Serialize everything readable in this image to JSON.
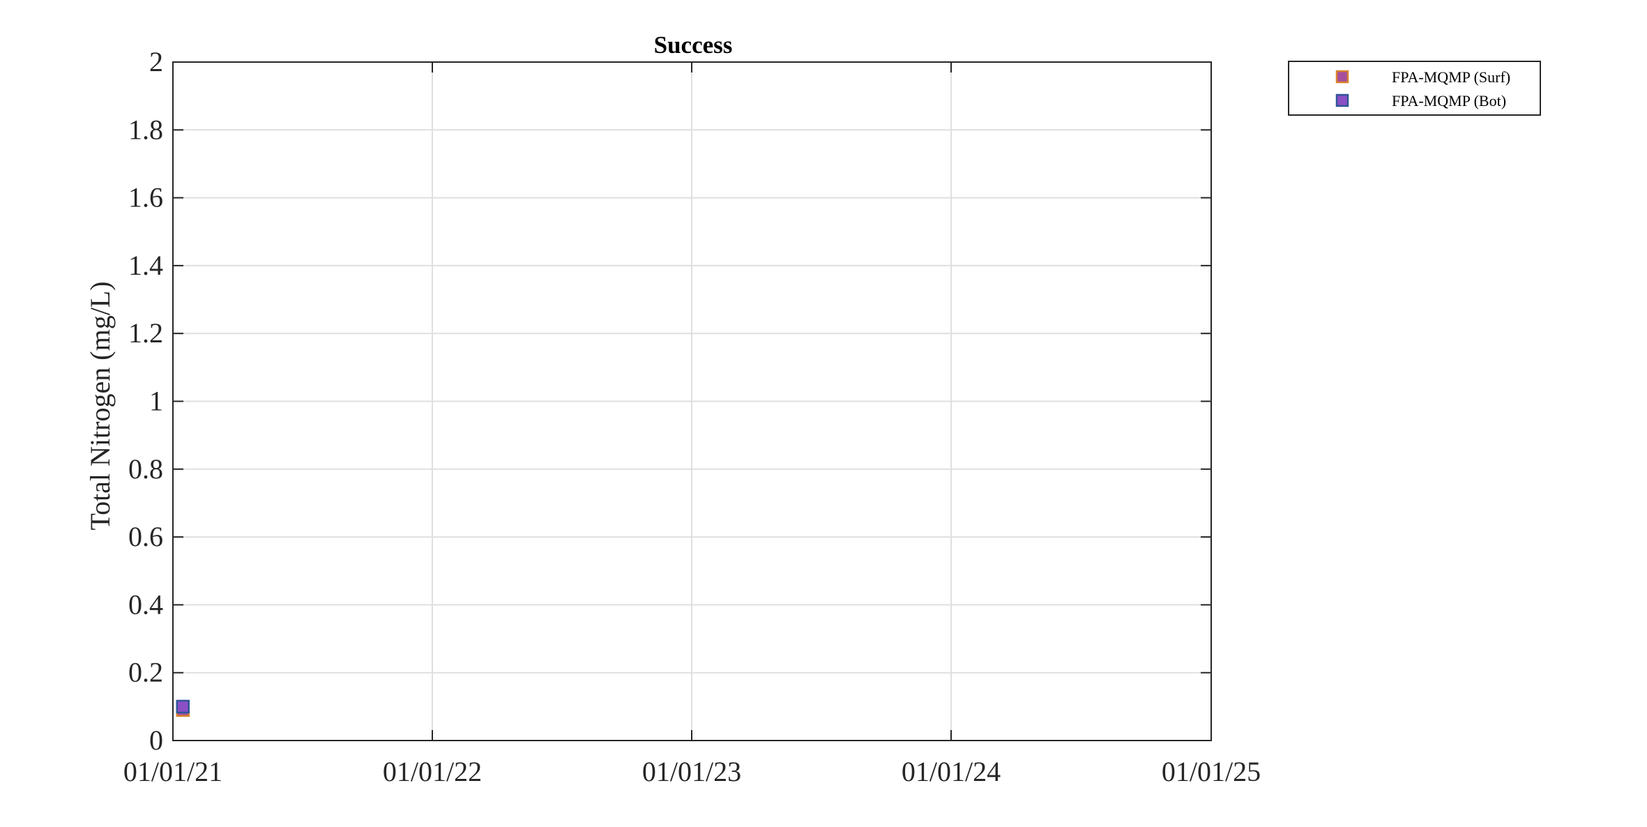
{
  "colors": {
    "axis": "#262626",
    "grid": "#dfdfdf",
    "legend_border": "#262626"
  },
  "chart_data": {
    "type": "scatter",
    "title": "Success",
    "xlabel": "",
    "ylabel": "Total Nitrogen (mg/L)",
    "xlim": [
      "2021-01-01",
      "2025-01-01"
    ],
    "ylim": [
      0,
      2
    ],
    "x_ticks": [
      {
        "date": "2021-01-01",
        "label": "01/01/21"
      },
      {
        "date": "2022-01-01",
        "label": "01/01/22"
      },
      {
        "date": "2023-01-01",
        "label": "01/01/23"
      },
      {
        "date": "2024-01-01",
        "label": "01/01/24"
      },
      {
        "date": "2025-01-01",
        "label": "01/01/25"
      }
    ],
    "y_ticks": [
      {
        "value": 0,
        "label": "0"
      },
      {
        "value": 0.2,
        "label": "0.2"
      },
      {
        "value": 0.4,
        "label": "0.4"
      },
      {
        "value": 0.6,
        "label": "0.6"
      },
      {
        "value": 0.8,
        "label": "0.8"
      },
      {
        "value": 1,
        "label": "1"
      },
      {
        "value": 1.2,
        "label": "1.2"
      },
      {
        "value": 1.4,
        "label": "1.4"
      },
      {
        "value": 1.6,
        "label": "1.6"
      },
      {
        "value": 1.8,
        "label": "1.8"
      },
      {
        "value": 2,
        "label": "2"
      }
    ],
    "grid": true,
    "legend_position": "outside-top-right",
    "series": [
      {
        "name": "FPA-MQMP (Surf)",
        "marker": "square",
        "fill": "#a64f9e",
        "edge": "#d9822b",
        "points": [
          {
            "x": "2021-01-15",
            "y": 0.09
          }
        ]
      },
      {
        "name": "FPA-MQMP (Bot)",
        "marker": "square",
        "fill": "#8a4fc4",
        "edge": "#2f5597",
        "points": [
          {
            "x": "2021-01-15",
            "y": 0.1
          }
        ]
      }
    ]
  }
}
